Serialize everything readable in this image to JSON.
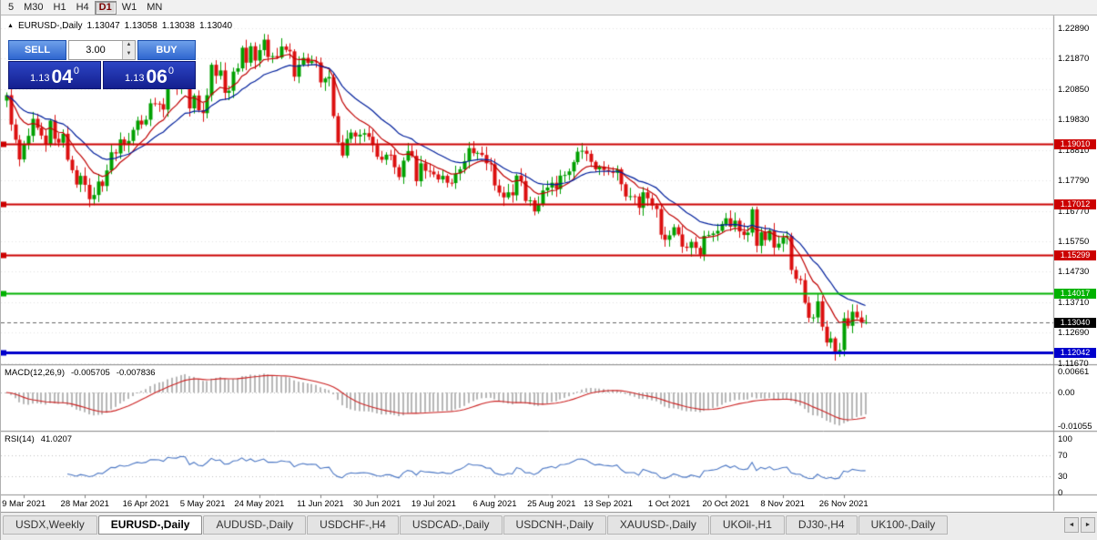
{
  "toolbar": {
    "timeframes": [
      {
        "label": "5",
        "active": false
      },
      {
        "label": "M30",
        "active": false
      },
      {
        "label": "H1",
        "active": false
      },
      {
        "label": "H4",
        "active": false
      },
      {
        "label": "D1",
        "active": true
      },
      {
        "label": "W1",
        "active": false
      },
      {
        "label": "MN",
        "active": false
      }
    ]
  },
  "chart": {
    "header": {
      "collapse_icon": "▲",
      "symbol": "EURUSD-,Daily",
      "open": "1.13047",
      "high": "1.13058",
      "low": "1.13038",
      "close": "1.13040"
    },
    "one_click": {
      "sell_label": "SELL",
      "buy_label": "BUY",
      "volume": "3.00",
      "spin_up_icon": "▲",
      "spin_down_icon": "▼",
      "sell_big": "1.13",
      "sell_pips": "04",
      "sell_pipette": "0",
      "buy_big": "1.13",
      "buy_pips": "06",
      "buy_pipette": "0"
    },
    "price_axis": [
      "1.22890",
      "1.21870",
      "1.20850",
      "1.19830",
      "1.18810",
      "1.17790",
      "1.16770",
      "1.15750",
      "1.14730",
      "1.13710",
      "1.12690",
      "1.11670"
    ],
    "date_axis": [
      {
        "label": "9 Mar 2021",
        "bar": 4
      },
      {
        "label": "28 Mar 2021",
        "bar": 18
      },
      {
        "label": "16 Apr 2021",
        "bar": 32
      },
      {
        "label": "5 May 2021",
        "bar": 45
      },
      {
        "label": "24 May 2021",
        "bar": 58
      },
      {
        "label": "11 Jun 2021",
        "bar": 72
      },
      {
        "label": "30 Jun 2021",
        "bar": 85
      },
      {
        "label": "19 Jul 2021",
        "bar": 98
      },
      {
        "label": "6 Aug 2021",
        "bar": 112
      },
      {
        "label": "25 Aug 2021",
        "bar": 125
      },
      {
        "label": "13 Sep 2021",
        "bar": 138
      },
      {
        "label": "1 Oct 2021",
        "bar": 152
      },
      {
        "label": "20 Oct 2021",
        "bar": 165
      },
      {
        "label": "8 Nov 2021",
        "bar": 178
      },
      {
        "label": "26 Nov 2021",
        "bar": 192
      }
    ],
    "levels": [
      {
        "label": "1.19010",
        "value": 1.1901,
        "color": "#cc0000",
        "width": 2
      },
      {
        "label": "1.17012",
        "value": 1.17012,
        "color": "#cc0000",
        "width": 2
      },
      {
        "label": "1.15299",
        "value": 1.15299,
        "color": "#cc0000",
        "width": 2
      },
      {
        "label": "1.14017",
        "value": 1.14017,
        "color": "#00b200",
        "width": 2
      },
      {
        "label": "1.12042",
        "value": 1.12042,
        "color": "#0000cc",
        "width": 3
      }
    ],
    "current_price": {
      "label": "1.13040",
      "value": 1.1304,
      "color": "#000000"
    }
  },
  "indicators": {
    "macd": {
      "title": "MACD(12,26,9)",
      "value_macd": "-0.005705",
      "value_signal": "-0.007836",
      "axis": [
        "0.00661",
        "0.00",
        "-0.01055"
      ],
      "fast": 12,
      "slow": 26,
      "signal": 9
    },
    "rsi": {
      "title": "RSI(14)",
      "value": "41.0207",
      "axis": [
        "100",
        "70",
        "30",
        "0"
      ],
      "period": 14,
      "levels": [
        70,
        30
      ]
    }
  },
  "tabs": {
    "scroll_left_icon": "◄",
    "scroll_right_icon": "►",
    "items": [
      {
        "label": "USDX,Weekly",
        "active": false
      },
      {
        "label": "EURUSD-,Daily",
        "active": true
      },
      {
        "label": "AUDUSD-,Daily",
        "active": false
      },
      {
        "label": "USDCHF-,H4",
        "active": false
      },
      {
        "label": "USDCAD-,Daily",
        "active": false
      },
      {
        "label": "USDCNH-,Daily",
        "active": false
      },
      {
        "label": "XAUUSD-,Daily",
        "active": false
      },
      {
        "label": "UKOil-,H1",
        "active": false
      },
      {
        "label": "DJ30-,H4",
        "active": false
      },
      {
        "label": "UK100-,Daily",
        "active": false
      }
    ]
  },
  "chart_data": {
    "type": "candlestick",
    "symbol": "EURUSD",
    "timeframe": "Daily",
    "ma_fast_period": 10,
    "ma_slow_period": 21,
    "y_axis_range": [
      1.1163,
      1.2331
    ],
    "colors": {
      "up": "#00a000",
      "down": "#dc1010",
      "ma_fast": "#c00000",
      "ma_slow": "#001f9c",
      "macd_hist": "#b8b8b8",
      "macd_signal": "#cc2222",
      "rsi": "#4a76c4",
      "grid": "#e3e3e3"
    },
    "closes": [
      1.2064,
      1.1966,
      1.1915,
      1.1849,
      1.19,
      1.1928,
      1.1985,
      1.1955,
      1.1929,
      1.19,
      1.1979,
      1.1918,
      1.1905,
      1.1935,
      1.1848,
      1.1813,
      1.1765,
      1.1794,
      1.1764,
      1.1716,
      1.173,
      1.1775,
      1.176,
      1.1812,
      1.1873,
      1.1869,
      1.1916,
      1.1899,
      1.1911,
      1.1948,
      1.1979,
      1.1966,
      1.1982,
      1.2037,
      1.2036,
      1.2034,
      1.2016,
      1.2098,
      1.209,
      1.2089,
      1.2126,
      1.2122,
      1.202,
      1.2063,
      1.2014,
      1.2004,
      1.2064,
      1.2166,
      1.2129,
      1.2147,
      1.2072,
      1.2079,
      1.2143,
      1.2154,
      1.2223,
      1.2173,
      1.2228,
      1.218,
      1.2215,
      1.225,
      1.2192,
      1.2195,
      1.219,
      1.2227,
      1.2216,
      1.2211,
      1.2126,
      1.2166,
      1.2189,
      1.2172,
      1.2178,
      1.2174,
      1.2107,
      1.212,
      1.2125,
      1.1994,
      1.1906,
      1.1862,
      1.1918,
      1.1939,
      1.1926,
      1.1932,
      1.1937,
      1.1925,
      1.1897,
      1.1858,
      1.1848,
      1.1865,
      1.1864,
      1.1823,
      1.179,
      1.1845,
      1.1877,
      1.1861,
      1.1776,
      1.1836,
      1.1811,
      1.1808,
      1.1799,
      1.1782,
      1.1794,
      1.1771,
      1.177,
      1.1802,
      1.1816,
      1.1843,
      1.1887,
      1.187,
      1.1871,
      1.1864,
      1.1836,
      1.1833,
      1.1762,
      1.1738,
      1.1722,
      1.1739,
      1.1729,
      1.1795,
      1.1777,
      1.171,
      1.1712,
      1.1675,
      1.1697,
      1.1745,
      1.1755,
      1.1771,
      1.175,
      1.1795,
      1.1797,
      1.1809,
      1.184,
      1.1875,
      1.1878,
      1.1868,
      1.1841,
      1.1816,
      1.1825,
      1.1814,
      1.181,
      1.1804,
      1.1816,
      1.1766,
      1.1725,
      1.1726,
      1.1725,
      1.1687,
      1.1739,
      1.1719,
      1.1695,
      1.1683,
      1.1597,
      1.158,
      1.1595,
      1.1622,
      1.1598,
      1.1557,
      1.1553,
      1.1573,
      1.1553,
      1.153,
      1.1593,
      1.1596,
      1.1601,
      1.161,
      1.1633,
      1.1652,
      1.1624,
      1.1644,
      1.1608,
      1.1596,
      1.1604,
      1.1682,
      1.156,
      1.1605,
      1.1579,
      1.1611,
      1.1554,
      1.1567,
      1.1588,
      1.1593,
      1.1479,
      1.1449,
      1.1445,
      1.1369,
      1.1319,
      1.132,
      1.1374,
      1.1289,
      1.1236,
      1.125,
      1.12,
      1.1211,
      1.1317,
      1.1292,
      1.1339,
      1.132,
      1.1302,
      1.1304
    ]
  }
}
